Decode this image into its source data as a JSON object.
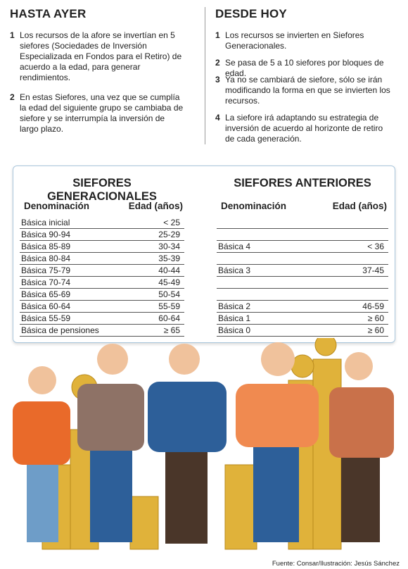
{
  "left": {
    "title": "HASTA AYER",
    "items": [
      {
        "number": 1,
        "text": "Los recursos de la afore se invertían en 5 siefores (Sociedades de Inversión Especializada en Fondos para el Retiro) de acuerdo a la edad, para generar rendimientos."
      },
      {
        "number": 2,
        "text": "En estas Siefores, una vez que se cumplía la edad del siguiente grupo se cambiaba de siefore y se interrumpía la inversión de largo plazo."
      }
    ]
  },
  "right": {
    "title": "DESDE HOY",
    "items": [
      {
        "number": 1,
        "text": "Los recursos se invierten en Siefores Generacionales."
      },
      {
        "number": 2,
        "text": "Se pasa de 5 a 10 siefores por bloques de edad."
      },
      {
        "number": 3,
        "text": "Ya no se cambiará de siefore, sólo se irán modificando la forma en que se invierten los recursos."
      },
      {
        "number": 4,
        "text": "La siefore irá adaptando su estrategia de inversión de acuerdo al horizonte de retiro de cada generación."
      }
    ]
  },
  "tables": [
    {
      "title": "SIEFORES GENERACIONALES",
      "headers": [
        "Denominación",
        "Edad (años)"
      ],
      "rows": [
        [
          "Básica inicial",
          "< 25"
        ],
        [
          "Básica 90-94",
          "25-29"
        ],
        [
          "Básica 85-89",
          "30-34"
        ],
        [
          "Básica 80-84",
          "35-39"
        ],
        [
          "Básica 75-79",
          "40-44"
        ],
        [
          "Básica 70-74",
          "45-49"
        ],
        [
          "Básica 65-69",
          "50-54"
        ],
        [
          "Básica 60-64",
          "55-59"
        ],
        [
          "Básica 55-59",
          "60-64"
        ],
        [
          "Básica de pensiones",
          "≥ 65"
        ]
      ]
    },
    {
      "title": "SIEFORES ANTERIORES",
      "headers": [
        "Denominación",
        "Edad (años)"
      ],
      "rows": [
        null,
        null,
        [
          "Básica 4",
          "< 36"
        ],
        null,
        [
          "Básica 3",
          "37-45"
        ],
        null,
        null,
        [
          "Básica 2",
          "46-59"
        ],
        [
          "Básica 1",
          "≥ 60"
        ],
        [
          "Básica 0",
          "≥ 60"
        ]
      ]
    }
  ],
  "footer": "Fuente: Consar/Ilustración: Jesús Sánchez"
}
